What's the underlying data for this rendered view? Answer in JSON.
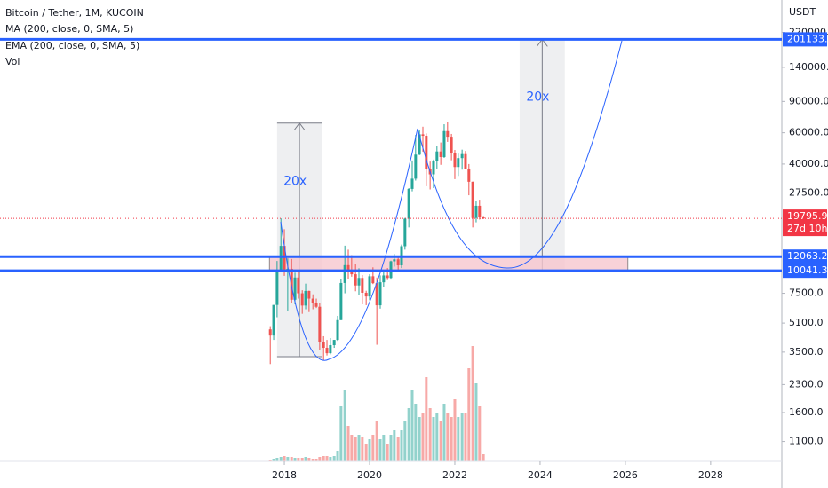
{
  "chart_data": {
    "type": "candlestick",
    "title": "Bitcoin / Tether, 1M, KUCOIN",
    "indicators": [
      "MA (200, close, 0, SMA, 5)",
      "EMA (200, close, 0, SMA, 5)",
      "Vol"
    ],
    "y_unit": "USDT",
    "log_scale": true,
    "up_color": "#26a69a",
    "down_color": "#ef5350",
    "xlim": [
      2011.33,
      2029.67
    ],
    "xticks": [
      2018,
      2020,
      2022,
      2024,
      2026,
      2028
    ],
    "ylim": [
      850,
      335000
    ],
    "yticks": [
      {
        "value": 220000,
        "label": "220000.0"
      },
      {
        "value": 140000,
        "label": "140000.0"
      },
      {
        "value": 90000,
        "label": "90000.0"
      },
      {
        "value": 60000,
        "label": "60000.0"
      },
      {
        "value": 40000,
        "label": "40000.0"
      },
      {
        "value": 27500,
        "label": "27500.0"
      },
      {
        "value": 7500,
        "label": "7500.0"
      },
      {
        "value": 5100,
        "label": "5100.0"
      },
      {
        "value": 3500,
        "label": "3500.0"
      },
      {
        "value": 2300,
        "label": "2300.0"
      },
      {
        "value": 1600,
        "label": "1600.0"
      },
      {
        "value": 1100,
        "label": "1100.0"
      }
    ],
    "candles": {
      "x": [
        2017.67,
        2017.75,
        2017.83,
        2017.92,
        2018.0,
        2018.08,
        2018.17,
        2018.25,
        2018.33,
        2018.42,
        2018.5,
        2018.58,
        2018.67,
        2018.75,
        2018.83,
        2018.92,
        2019.0,
        2019.08,
        2019.17,
        2019.25,
        2019.33,
        2019.42,
        2019.5,
        2019.58,
        2019.67,
        2019.75,
        2019.83,
        2019.92,
        2020.0,
        2020.08,
        2020.17,
        2020.25,
        2020.33,
        2020.42,
        2020.5,
        2020.58,
        2020.67,
        2020.75,
        2020.83,
        2020.92,
        2021.0,
        2021.08,
        2021.17,
        2021.25,
        2021.33,
        2021.42,
        2021.5,
        2021.58,
        2021.67,
        2021.75,
        2021.83,
        2021.92,
        2022.0,
        2022.08,
        2022.17,
        2022.25,
        2022.33,
        2022.42,
        2022.5,
        2022.58,
        2022.67
      ],
      "open": [
        4700,
        4340,
        6450,
        10000,
        13860,
        10200,
        10300,
        6900,
        9200,
        7500,
        6400,
        7730,
        7000,
        6600,
        6300,
        4000,
        3700,
        3450,
        3830,
        4100,
        5300,
        8570,
        10800,
        10100,
        9600,
        8300,
        9150,
        7550,
        7200,
        9350,
        8550,
        6420,
        8650,
        9450,
        9150,
        11350,
        11650,
        10780,
        13800,
        19700,
        28990,
        33100,
        45200,
        58800,
        57700,
        37300,
        35000,
        41500,
        47100,
        43800,
        61300,
        57000,
        46200,
        38500,
        43200,
        45500,
        37700,
        31800,
        19900,
        23300,
        20050
      ],
      "high": [
        4900,
        6450,
        11400,
        19800,
        17200,
        11800,
        11700,
        9800,
        10000,
        7800,
        8500,
        7760,
        7400,
        7000,
        6600,
        4300,
        4100,
        4200,
        4100,
        5600,
        9000,
        13900,
        13200,
        12300,
        10950,
        10370,
        9500,
        7750,
        9600,
        10500,
        9200,
        9450,
        10080,
        10400,
        11450,
        12480,
        12100,
        14100,
        19900,
        29300,
        41900,
        58300,
        61800,
        64900,
        59500,
        41300,
        42400,
        50500,
        52900,
        67000,
        69000,
        59100,
        48000,
        45800,
        48200,
        47400,
        40000,
        31900,
        24700,
        25200,
        20200
      ],
      "low": [
        3000,
        4100,
        5500,
        10900,
        9400,
        6000,
        6600,
        6500,
        7000,
        5750,
        6100,
        5880,
        6100,
        6200,
        3600,
        3150,
        3350,
        3400,
        3700,
        4050,
        5300,
        7500,
        9000,
        9300,
        7700,
        7300,
        6500,
        6430,
        6850,
        8450,
        3850,
        6150,
        8100,
        8900,
        8950,
        10600,
        9850,
        10400,
        13200,
        17600,
        28100,
        32300,
        44900,
        47000,
        30000,
        28800,
        29300,
        37300,
        39600,
        43300,
        53300,
        42000,
        32900,
        34300,
        37200,
        37600,
        26700,
        17600,
        18800,
        19500,
        19600
      ],
      "close": [
        4340,
        6450,
        10000,
        13860,
        10200,
        10300,
        6900,
        9200,
        7500,
        6400,
        7730,
        7000,
        6600,
        6300,
        4000,
        3700,
        3450,
        3830,
        4100,
        5300,
        8570,
        10800,
        10100,
        9600,
        8300,
        9150,
        7550,
        7200,
        9350,
        8550,
        6420,
        8650,
        9450,
        9150,
        11350,
        11650,
        10780,
        13800,
        19700,
        28990,
        33100,
        45200,
        58800,
        57700,
        37300,
        35000,
        41500,
        47100,
        43800,
        61300,
        57000,
        46200,
        38500,
        43200,
        45500,
        37700,
        31800,
        19900,
        23300,
        20050,
        19795.9
      ],
      "volume": [
        2,
        3,
        4,
        5,
        6,
        5,
        5,
        4,
        4,
        4,
        5,
        4,
        3,
        3,
        5,
        6,
        6,
        5,
        6,
        12,
        62,
        80,
        40,
        30,
        28,
        30,
        28,
        20,
        25,
        30,
        45,
        25,
        30,
        20,
        30,
        35,
        28,
        35,
        45,
        60,
        80,
        65,
        50,
        55,
        95,
        60,
        50,
        55,
        45,
        65,
        55,
        50,
        70,
        50,
        55,
        55,
        105,
        130,
        88,
        62,
        8
      ]
    },
    "last_price": 19795.9,
    "countdown": "27d 10h",
    "levels": [
      201133.3,
      12063.2,
      10041.3
    ],
    "level_color": "#2962ff",
    "zone_x": [
      2017.65,
      2026.06
    ],
    "measures": [
      {
        "label": "20x",
        "low": 3300,
        "high": 68000,
        "x": [
          2017.83,
          2018.88
        ]
      },
      {
        "label": "20x",
        "low": 10041.3,
        "high": 201133.3,
        "x": [
          2023.52,
          2024.58
        ]
      }
    ]
  }
}
